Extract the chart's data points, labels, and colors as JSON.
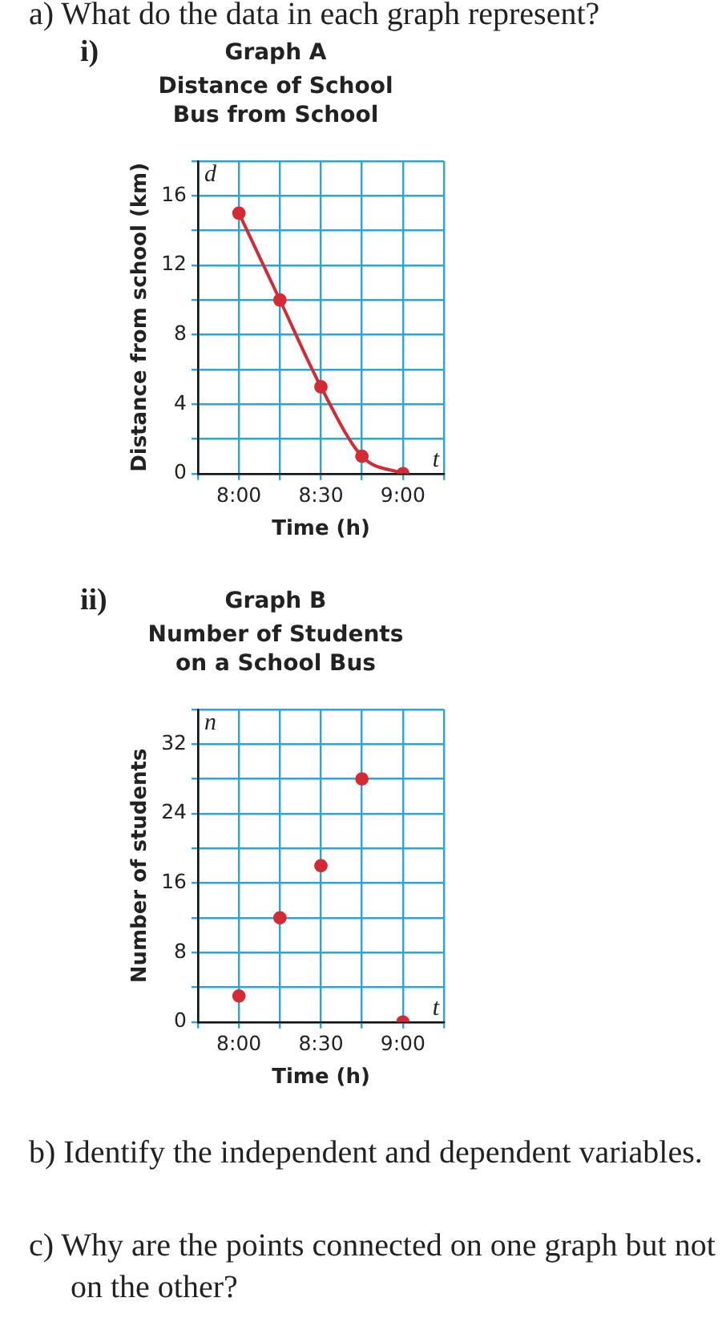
{
  "chart_data": [
    {
      "type": "line",
      "title": "Graph A",
      "subtitle": "Distance of School Bus from School",
      "xlabel": "Time (h)",
      "ylabel": "Distance from school (km)",
      "x": [
        8,
        8.25,
        8.5,
        8.75,
        9
      ],
      "series": [
        {
          "color": "#d42a35",
          "values": [
            15,
            10,
            5,
            1,
            0
          ]
        }
      ],
      "xlim": [
        7.75,
        9.25
      ],
      "ylim": [
        0,
        18
      ],
      "xticks": [
        {
          "value": 7.75,
          "label": null
        },
        {
          "value": 8,
          "label": "8:00"
        },
        {
          "value": 8.25,
          "label": null
        },
        {
          "value": 8.5,
          "label": "8:30"
        },
        {
          "value": 8.75,
          "label": null
        },
        {
          "value": 9,
          "label": "9:00"
        },
        {
          "value": 9.25,
          "label": null
        }
      ],
      "yticks": [
        0,
        {
          "value": 2,
          "label": null
        },
        4,
        {
          "value": 6,
          "label": null
        },
        8,
        {
          "value": 10,
          "label": null
        },
        12,
        {
          "value": 14,
          "label": null
        },
        16,
        {
          "value": 18,
          "label": null
        }
      ],
      "grid": true,
      "marker": "circle",
      "line_style": "solid",
      "annotations": [
        "a) What do the data in each graph represent?",
        "i)",
        "d",
        "t"
      ]
    },
    {
      "type": "scatter",
      "title": "Graph B",
      "subtitle": "Number of Students on a School Bus",
      "xlabel": "Time (h)",
      "ylabel": "Number of students",
      "x": [
        8,
        8.25,
        8.5,
        8.75,
        9
      ],
      "series": [
        {
          "color": "#d42a35",
          "values": [
            3,
            12,
            18,
            28,
            0
          ]
        }
      ],
      "xlim": [
        7.75,
        9.25
      ],
      "ylim": [
        0,
        36
      ],
      "xticks": [
        {
          "value": 7.75,
          "label": null
        },
        {
          "value": 8,
          "label": "8:00"
        },
        {
          "value": 8.25,
          "label": null
        },
        {
          "value": 8.5,
          "label": "8:30"
        },
        {
          "value": 8.75,
          "label": null
        },
        {
          "value": 9,
          "label": "9:00"
        },
        {
          "value": 9.25,
          "label": null
        }
      ],
      "yticks": [
        0,
        {
          "value": 4,
          "label": null
        },
        8,
        {
          "value": 12,
          "label": null
        },
        16,
        {
          "value": 20,
          "label": null
        },
        24,
        {
          "value": 28,
          "label": null
        },
        32,
        {
          "value": 36,
          "label": null
        }
      ],
      "grid": true,
      "marker": "circle",
      "annotations": [
        "ii)",
        "b) Identify the independent and dependent variables.",
        "c) Why are the points connected on one graph but not on the other?",
        "n",
        "t"
      ]
    }
  ]
}
